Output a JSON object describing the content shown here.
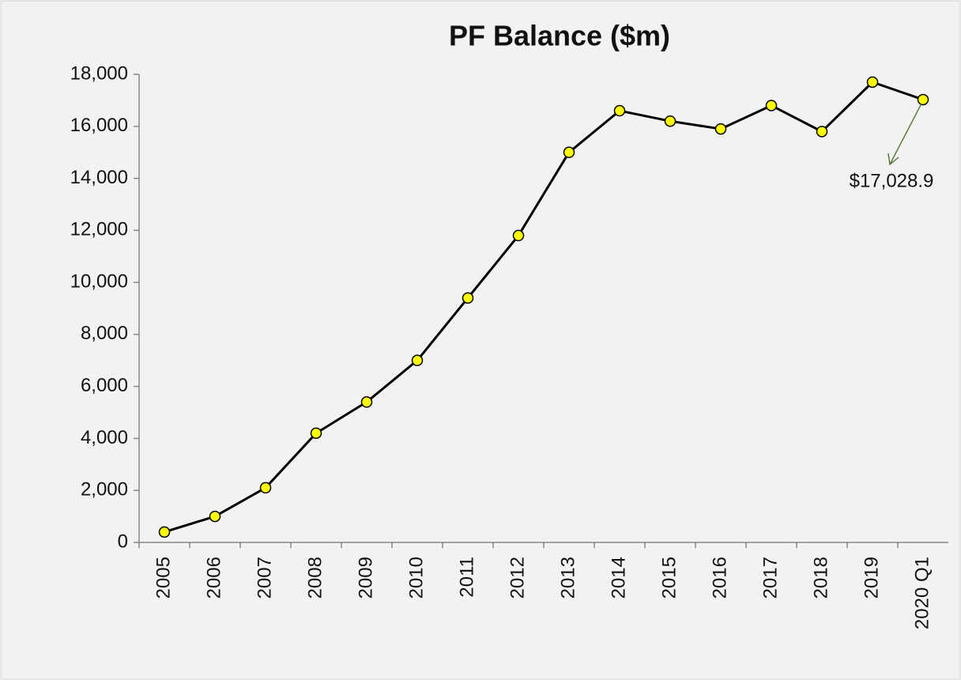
{
  "chart_data": {
    "type": "line",
    "title": "PF Balance ($m)",
    "categories": [
      "2005",
      "2006",
      "2007",
      "2008",
      "2009",
      "2010",
      "2011",
      "2012",
      "2013",
      "2014",
      "2015",
      "2016",
      "2017",
      "2018",
      "2019",
      "2020 Q1"
    ],
    "series": [
      {
        "name": "PF Balance",
        "color": "#000000",
        "marker_color": "#ffff00",
        "values": [
          400,
          1000,
          2100,
          4200,
          5400,
          7000,
          9400,
          11800,
          15000,
          16600,
          16200,
          15900,
          16800,
          15800,
          17700,
          17028.9
        ],
        "value_labels": [
          null,
          null,
          null,
          null,
          null,
          null,
          null,
          null,
          null,
          null,
          null,
          null,
          null,
          null,
          null,
          "$17,028.9"
        ]
      }
    ],
    "ylim": [
      0,
      18000
    ],
    "yticks": [
      0,
      {
        "value": 2000,
        "label": "2,000"
      },
      {
        "value": 4000,
        "label": "4,000"
      },
      {
        "value": 6000,
        "label": "6,000"
      },
      {
        "value": 8000,
        "label": "8,000"
      },
      {
        "value": 10000,
        "label": "10,000"
      },
      {
        "value": 12000,
        "label": "12,000"
      },
      {
        "value": 14000,
        "label": "14,000"
      },
      {
        "value": 16000,
        "label": "16,000"
      },
      {
        "value": 18000,
        "label": "18,000"
      }
    ],
    "grid": false
  }
}
